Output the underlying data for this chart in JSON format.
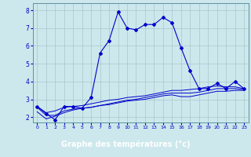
{
  "xlabel": "Graphe des températures (°c)",
  "background_color": "#cce8ec",
  "label_bg_color": "#000080",
  "label_text_color": "#ffffff",
  "grid_color": "#a8c8cc",
  "line_color": "#0000cc",
  "x_ticks": [
    0,
    1,
    2,
    3,
    4,
    5,
    6,
    7,
    8,
    9,
    10,
    11,
    12,
    13,
    14,
    15,
    16,
    17,
    18,
    19,
    20,
    21,
    22,
    23
  ],
  "ylim": [
    1.7,
    8.4
  ],
  "xlim": [
    -0.5,
    23.5
  ],
  "yticks": [
    2,
    3,
    4,
    5,
    6,
    7,
    8
  ],
  "series1": {
    "x": [
      0,
      1,
      2,
      3,
      4,
      5,
      6,
      7,
      8,
      9,
      10,
      11,
      12,
      13,
      14,
      15,
      16,
      17,
      18,
      19,
      20,
      21,
      22,
      23
    ],
    "y": [
      2.6,
      2.2,
      1.85,
      2.6,
      2.6,
      2.5,
      3.1,
      5.6,
      6.3,
      7.9,
      7.0,
      6.9,
      7.2,
      7.2,
      7.6,
      7.3,
      5.9,
      4.6,
      3.6,
      3.6,
      3.9,
      3.6,
      4.0,
      3.6
    ]
  },
  "series2": {
    "x": [
      0,
      1,
      2,
      3,
      4,
      5,
      6,
      7,
      8,
      9,
      10,
      11,
      12,
      13,
      14,
      15,
      16,
      17,
      18,
      19,
      20,
      21,
      22,
      23
    ],
    "y": [
      2.55,
      2.1,
      2.1,
      2.35,
      2.45,
      2.5,
      2.55,
      2.65,
      2.7,
      2.8,
      2.9,
      2.95,
      3.0,
      3.1,
      3.2,
      3.25,
      3.15,
      3.15,
      3.25,
      3.35,
      3.45,
      3.45,
      3.5,
      3.5
    ]
  },
  "series3": {
    "x": [
      0,
      1,
      2,
      3,
      4,
      5,
      6,
      7,
      8,
      9,
      10,
      11,
      12,
      13,
      14,
      15,
      16,
      17,
      18,
      19,
      20,
      21,
      22,
      23
    ],
    "y": [
      2.3,
      1.9,
      2.05,
      2.25,
      2.4,
      2.5,
      2.55,
      2.65,
      2.75,
      2.85,
      2.95,
      3.0,
      3.1,
      3.2,
      3.3,
      3.35,
      3.35,
      3.35,
      3.4,
      3.5,
      3.6,
      3.6,
      3.6,
      3.55
    ]
  },
  "series4": {
    "x": [
      0,
      1,
      2,
      3,
      4,
      5,
      6,
      7,
      8,
      9,
      10,
      11,
      12,
      13,
      14,
      15,
      16,
      17,
      18,
      19,
      20,
      21,
      22,
      23
    ],
    "y": [
      2.6,
      2.25,
      2.35,
      2.55,
      2.6,
      2.65,
      2.75,
      2.85,
      2.95,
      3.0,
      3.1,
      3.15,
      3.2,
      3.3,
      3.4,
      3.5,
      3.5,
      3.55,
      3.6,
      3.7,
      3.75,
      3.7,
      3.7,
      3.6
    ]
  }
}
